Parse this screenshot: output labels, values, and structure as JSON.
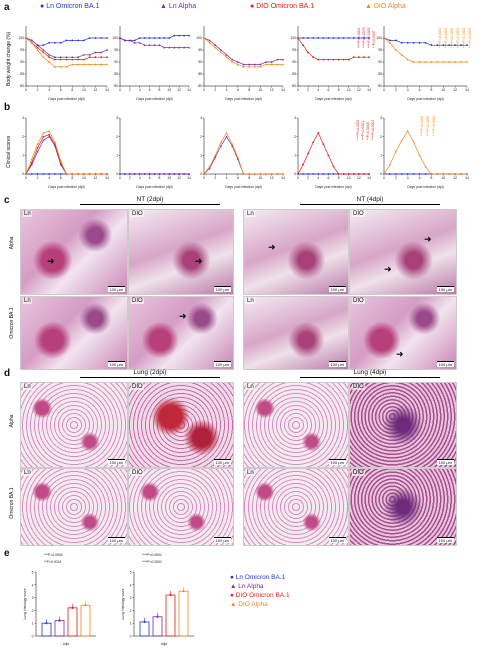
{
  "panels": {
    "a": "a",
    "b": "b",
    "c": "c",
    "d": "d",
    "e": "e"
  },
  "legend": [
    {
      "label": "Ln Omicron BA.1",
      "color": "#2233dd",
      "marker": "●"
    },
    {
      "label": "Ln Alpha",
      "color": "#7a2aa8",
      "marker": "▲"
    },
    {
      "label": "DIO Omicron BA.1",
      "color": "#e0201b",
      "marker": "●"
    },
    {
      "label": "DIO Alpha",
      "color": "#f08a1c",
      "marker": "▲"
    }
  ],
  "axes": {
    "weight_ylabel": "Body weight change (%)",
    "clinical_ylabel": "Clinical scores",
    "xlabel": "Days post infection (dpi)",
    "x_ticks": [
      "0",
      "2",
      "4",
      "6",
      "8",
      "10",
      "12",
      "14"
    ],
    "weight_yticks": [
      "100",
      "95",
      "90",
      "85",
      "80"
    ],
    "clinical_yticks": [
      "0",
      "1",
      "2",
      "3"
    ]
  },
  "chart_data": [
    {
      "type": "line",
      "panel": "a",
      "title": "",
      "xlabel": "Days post infection (dpi)",
      "ylabel": "Body weight change (%)",
      "ylim": [
        80,
        105
      ],
      "x": [
        0,
        1,
        2,
        3,
        4,
        5,
        6,
        7,
        8,
        9,
        10,
        11,
        12,
        13,
        14
      ],
      "series": [
        {
          "name": "Ln Omicron BA.1",
          "values": [
            100,
            99,
            97,
            97,
            98,
            98,
            98,
            99,
            99,
            99,
            99,
            100,
            100,
            100,
            100
          ]
        },
        {
          "name": "Ln Alpha",
          "values": [
            100,
            99,
            97,
            95,
            93,
            92,
            92,
            92,
            92,
            92,
            93,
            93,
            94,
            94,
            95
          ]
        },
        {
          "name": "DIO Omicron BA.1",
          "values": [
            100,
            98,
            96,
            94,
            92,
            91,
            91,
            91,
            91,
            91,
            91,
            92,
            92,
            92,
            92
          ]
        },
        {
          "name": "DIO Alpha",
          "values": [
            100,
            98,
            95,
            92,
            90,
            88,
            88,
            88,
            89,
            89,
            89,
            89,
            89,
            89,
            89
          ]
        }
      ]
    },
    {
      "type": "line",
      "panel": "a",
      "title": "",
      "xlabel": "Days post infection (dpi)",
      "ylabel": "",
      "ylim": [
        80,
        105
      ],
      "x": [
        0,
        1,
        2,
        3,
        4,
        5,
        6,
        7,
        8,
        9,
        10,
        11,
        12,
        13,
        14
      ],
      "series": [
        {
          "name": "Ln Omicron BA.1",
          "values": [
            100,
            99,
            99,
            99,
            100,
            100,
            100,
            100,
            100,
            100,
            100,
            101,
            101,
            101,
            101
          ]
        },
        {
          "name": "Ln Alpha",
          "values": [
            100,
            99,
            99,
            98,
            98,
            97,
            97,
            97,
            97,
            96,
            96,
            96,
            96,
            96,
            96
          ]
        }
      ]
    },
    {
      "type": "line",
      "panel": "a",
      "title": "",
      "xlabel": "Days post infection (dpi)",
      "ylabel": "",
      "ylim": [
        80,
        105
      ],
      "x": [
        0,
        1,
        2,
        3,
        4,
        5,
        6,
        7,
        8,
        9,
        10,
        11,
        12,
        13,
        14
      ],
      "series": [
        {
          "name": "Ln Alpha",
          "values": [
            100,
            99,
            97,
            95,
            93,
            91,
            90,
            89,
            89,
            89,
            89,
            90,
            90,
            91,
            91
          ]
        },
        {
          "name": "DIO Alpha",
          "values": [
            100,
            98,
            96,
            94,
            92,
            90,
            89,
            88,
            88,
            88,
            88,
            89,
            89,
            89,
            89
          ]
        }
      ]
    },
    {
      "type": "line",
      "panel": "a",
      "title": "",
      "xlabel": "Days post infection (dpi)",
      "ylabel": "",
      "ylim": [
        80,
        105
      ],
      "x": [
        0,
        1,
        2,
        3,
        4,
        5,
        6,
        7,
        8,
        9,
        10,
        11,
        12,
        13,
        14
      ],
      "series": [
        {
          "name": "Ln Omicron BA.1",
          "values": [
            100,
            100,
            100,
            100,
            100,
            100,
            100,
            100,
            100,
            100,
            100,
            100,
            100,
            100,
            100
          ]
        },
        {
          "name": "DIO Omicron BA.1",
          "values": [
            100,
            97,
            94,
            92,
            91,
            91,
            91,
            91,
            91,
            91,
            91,
            92,
            92,
            92,
            92
          ]
        }
      ]
    },
    {
      "type": "line",
      "panel": "a",
      "title": "",
      "xlabel": "Days post infection (dpi)",
      "ylabel": "",
      "ylim": [
        80,
        105
      ],
      "x": [
        0,
        1,
        2,
        3,
        4,
        5,
        6,
        7,
        8,
        9,
        10,
        11,
        12,
        13,
        14
      ],
      "series": [
        {
          "name": "Ln Omicron BA.1",
          "values": [
            100,
            99,
            99,
            98,
            98,
            98,
            98,
            98,
            97,
            97,
            97,
            97,
            97,
            97,
            97
          ]
        },
        {
          "name": "DIO Alpha",
          "values": [
            100,
            98,
            95,
            93,
            91,
            90,
            90,
            90,
            90,
            90,
            90,
            90,
            90,
            90,
            90
          ]
        }
      ]
    },
    {
      "type": "line",
      "panel": "b",
      "title": "",
      "xlabel": "Days post infection (dpi)",
      "ylabel": "Clinical scores",
      "ylim": [
        0,
        3
      ],
      "x": [
        0,
        1,
        2,
        3,
        4,
        5,
        6,
        7,
        8,
        9,
        10,
        11,
        12,
        13,
        14
      ],
      "series": [
        {
          "name": "Ln Omicron BA.1",
          "values": [
            0,
            0,
            0,
            0,
            0,
            0,
            0,
            0,
            0,
            0,
            0,
            0,
            0,
            0,
            0
          ]
        },
        {
          "name": "Ln Alpha",
          "values": [
            0,
            0.5,
            1.2,
            1.8,
            2.0,
            1.5,
            0.5,
            0,
            0,
            0,
            0,
            0,
            0,
            0,
            0
          ]
        },
        {
          "name": "DIO Omicron BA.1",
          "values": [
            0,
            0.6,
            1.4,
            2.0,
            2.1,
            1.6,
            0.6,
            0,
            0,
            0,
            0,
            0,
            0,
            0,
            0
          ]
        },
        {
          "name": "DIO Alpha",
          "values": [
            0,
            0.8,
            1.6,
            2.2,
            2.3,
            1.7,
            0.7,
            0,
            0,
            0,
            0,
            0,
            0,
            0,
            0
          ]
        }
      ]
    },
    {
      "type": "line",
      "panel": "b",
      "title": "",
      "xlabel": "Days post infection (dpi)",
      "ylabel": "",
      "ylim": [
        0,
        3
      ],
      "x": [
        0,
        1,
        2,
        3,
        4,
        5,
        6,
        7,
        8,
        9,
        10,
        11,
        12,
        13,
        14
      ],
      "series": [
        {
          "name": "Ln Omicron BA.1",
          "values": [
            0,
            0,
            0,
            0,
            0,
            0,
            0,
            0,
            0,
            0,
            0,
            0,
            0,
            0,
            0
          ]
        },
        {
          "name": "Ln Alpha",
          "values": [
            0,
            0,
            0,
            0,
            0,
            0,
            0,
            0,
            0,
            0,
            0,
            0,
            0,
            0,
            0
          ]
        }
      ]
    },
    {
      "type": "line",
      "panel": "b",
      "title": "",
      "xlabel": "Days post infection (dpi)",
      "ylabel": "",
      "ylim": [
        0,
        3
      ],
      "x": [
        0,
        1,
        2,
        3,
        4,
        5,
        6,
        7,
        8,
        9,
        10,
        11,
        12,
        13,
        14
      ],
      "series": [
        {
          "name": "Ln Alpha",
          "values": [
            0,
            0.3,
            0.9,
            1.5,
            2.0,
            1.5,
            0.8,
            0,
            0,
            0,
            0,
            0,
            0,
            0,
            0
          ]
        },
        {
          "name": "DIO Alpha",
          "values": [
            0,
            0.4,
            1.0,
            1.7,
            2.2,
            1.6,
            0.9,
            0,
            0,
            0,
            0,
            0,
            0,
            0,
            0
          ]
        }
      ]
    },
    {
      "type": "line",
      "panel": "b",
      "title": "",
      "xlabel": "Days post infection (dpi)",
      "ylabel": "",
      "ylim": [
        0,
        3
      ],
      "x": [
        0,
        1,
        2,
        3,
        4,
        5,
        6,
        7,
        8,
        9,
        10,
        11,
        12,
        13,
        14
      ],
      "series": [
        {
          "name": "Ln Omicron BA.1",
          "values": [
            0,
            0,
            0,
            0,
            0,
            0,
            0,
            0,
            0,
            0,
            0,
            0,
            0,
            0,
            0
          ]
        },
        {
          "name": "DIO Omicron BA.1",
          "values": [
            0,
            0.5,
            1.1,
            1.7,
            2.2,
            1.6,
            1.0,
            0.4,
            0,
            0,
            0,
            0,
            0,
            0,
            0
          ]
        }
      ]
    },
    {
      "type": "line",
      "panel": "b",
      "title": "",
      "xlabel": "Days post infection (dpi)",
      "ylabel": "",
      "ylim": [
        0,
        3
      ],
      "x": [
        0,
        1,
        2,
        3,
        4,
        5,
        6,
        7,
        8,
        9,
        10,
        11,
        12,
        13,
        14
      ],
      "series": [
        {
          "name": "Ln Omicron BA.1",
          "values": [
            0,
            0,
            0,
            0,
            0,
            0,
            0,
            0,
            0,
            0,
            0,
            0,
            0,
            0,
            0
          ]
        },
        {
          "name": "DIO Alpha",
          "values": [
            0,
            0.5,
            1.2,
            1.8,
            2.3,
            1.7,
            1.0,
            0.4,
            0,
            0,
            0,
            0,
            0,
            0,
            0
          ]
        }
      ]
    },
    {
      "type": "bar",
      "panel": "e",
      "title": "",
      "xlabel": "2dpi",
      "ylabel": "Lung histology score",
      "ylim": [
        0,
        5
      ],
      "categories": [
        "Ln Omicron BA.1",
        "Ln Alpha",
        "DIO Omicron BA.1",
        "DIO Alpha"
      ],
      "values": [
        1.0,
        1.2,
        2.2,
        2.4
      ],
      "annotations": [
        "***P=0.0003",
        "**P=0.0014"
      ]
    },
    {
      "type": "bar",
      "panel": "e",
      "title": "",
      "xlabel": "4dpi",
      "ylabel": "Lung histology score",
      "ylim": [
        0,
        5
      ],
      "categories": [
        "Ln Omicron BA.1",
        "Ln Alpha",
        "DIO Omicron BA.1",
        "DIO Alpha"
      ],
      "values": [
        1.1,
        1.5,
        3.2,
        3.5
      ],
      "annotations": [
        "****P<0.0001",
        "****P<0.0001"
      ]
    }
  ],
  "sig_a4": [
    "****P<0.0001",
    "****P=0.0076",
    "****P=0.0002",
    "**P=0.0037"
  ],
  "sig_a5": [
    "****P<0.0001",
    "****P<0.0001",
    "****P<0.0001",
    "****P<0.0001",
    "****P<0.0001",
    "****P<0.0001"
  ],
  "sig_b4": [
    "****P<0.0001",
    "***P=0.0001",
    "**P=0.0045",
    "****P<0.0001"
  ],
  "sig_b5": [
    "****P<0.0001",
    "****P<0.0001",
    "****P<0.0001"
  ],
  "histology": {
    "c_left_title": "NT (2dpi)",
    "c_right_title": "NT (4dpi)",
    "d_left_title": "Lung (2dpi)",
    "d_right_title": "Lung (4dpi)",
    "row_alpha": "Alpha",
    "row_omicron": "Omicron BA.1",
    "ln": "Ln",
    "dio": "DIO",
    "scale": "100 μm"
  },
  "colors": {
    "ln_omicron": "#2233dd",
    "ln_alpha": "#7a2aa8",
    "dio_omicron": "#e0201b",
    "dio_alpha": "#f08a1c"
  }
}
